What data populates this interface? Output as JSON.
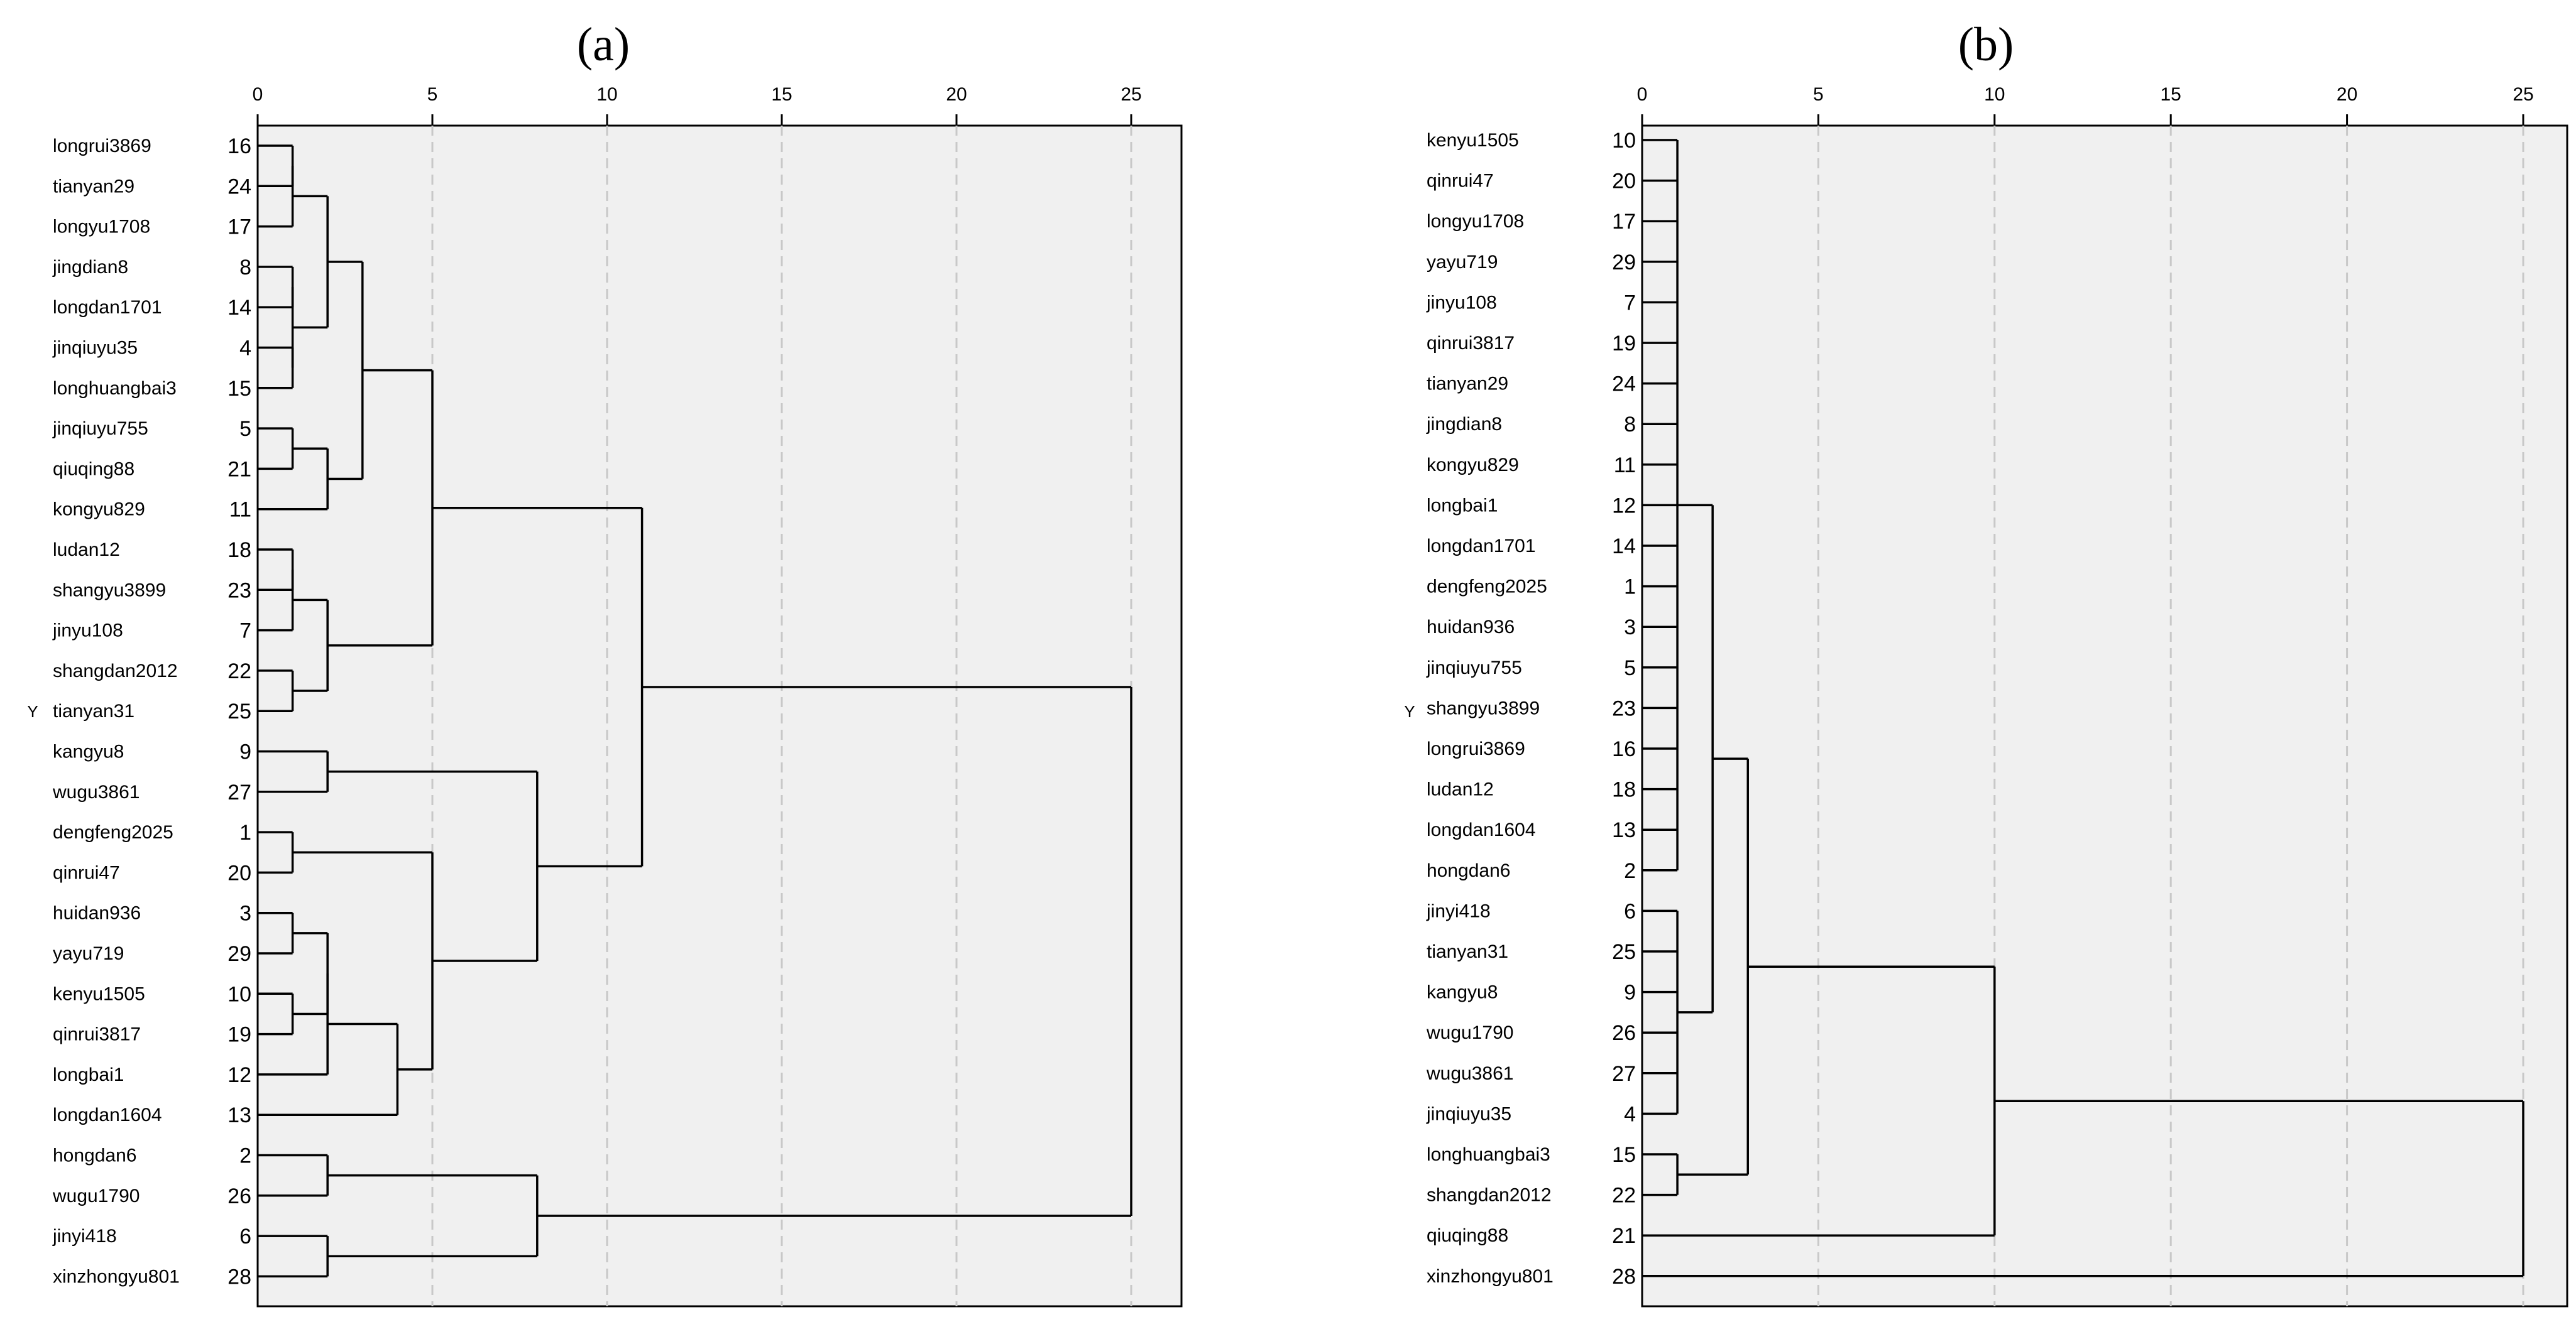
{
  "figure": {
    "panels": [
      {
        "id": "a",
        "title": "(a)",
        "y_axis_label": "Y",
        "x_ticks": [
          "0",
          "5",
          "10",
          "15",
          "20",
          "25"
        ],
        "axis_max": 25,
        "leaves": [
          {
            "name": "longrui3869",
            "id": "16"
          },
          {
            "name": "tianyan29",
            "id": "24"
          },
          {
            "name": "longyu1708",
            "id": "17"
          },
          {
            "name": "jingdian8",
            "id": "8"
          },
          {
            "name": "longdan1701",
            "id": "14"
          },
          {
            "name": "jinqiuyu35",
            "id": "4"
          },
          {
            "name": "longhuangbai3",
            "id": "15"
          },
          {
            "name": "jinqiuyu755",
            "id": "5"
          },
          {
            "name": "qiuqing88",
            "id": "21"
          },
          {
            "name": "kongyu829",
            "id": "11"
          },
          {
            "name": "ludan12",
            "id": "18"
          },
          {
            "name": "shangyu3899",
            "id": "23"
          },
          {
            "name": "jinyu108",
            "id": "7"
          },
          {
            "name": "shangdan2012",
            "id": "22"
          },
          {
            "name": "tianyan31",
            "id": "25"
          },
          {
            "name": "kangyu8",
            "id": "9"
          },
          {
            "name": "wugu3861",
            "id": "27"
          },
          {
            "name": "dengfeng2025",
            "id": "1"
          },
          {
            "name": "qinrui47",
            "id": "20"
          },
          {
            "name": "huidan936",
            "id": "3"
          },
          {
            "name": "yayu719",
            "id": "29"
          },
          {
            "name": "kenyu1505",
            "id": "10"
          },
          {
            "name": "qinrui3817",
            "id": "19"
          },
          {
            "name": "longbai1",
            "id": "12"
          },
          {
            "name": "longdan1604",
            "id": "13"
          },
          {
            "name": "hongdan6",
            "id": "2"
          },
          {
            "name": "wugu1790",
            "id": "26"
          },
          {
            "name": "jinyi418",
            "id": "6"
          },
          {
            "name": "xinzhongyu801",
            "id": "28"
          }
        ],
        "merges": [
          {
            "children": [
              [
                0,
                0
              ],
              [
                0,
                1
              ]
            ],
            "height": 1
          },
          {
            "children": [
              [
                1,
                0
              ],
              [
                0,
                2
              ]
            ],
            "height": 1
          },
          {
            "children": [
              [
                0,
                3
              ],
              [
                0,
                4
              ]
            ],
            "height": 1
          },
          {
            "children": [
              [
                0,
                5
              ],
              [
                0,
                6
              ]
            ],
            "height": 1
          },
          {
            "children": [
              [
                1,
                2
              ],
              [
                1,
                3
              ]
            ],
            "height": 1
          },
          {
            "children": [
              [
                1,
                1
              ],
              [
                1,
                4
              ]
            ],
            "height": 2
          },
          {
            "children": [
              [
                0,
                7
              ],
              [
                0,
                8
              ]
            ],
            "height": 1
          },
          {
            "children": [
              [
                1,
                6
              ],
              [
                0,
                9
              ]
            ],
            "height": 2
          },
          {
            "children": [
              [
                1,
                5
              ],
              [
                1,
                7
              ]
            ],
            "height": 3
          },
          {
            "children": [
              [
                0,
                10
              ],
              [
                0,
                11
              ]
            ],
            "height": 1
          },
          {
            "children": [
              [
                1,
                9
              ],
              [
                0,
                12
              ]
            ],
            "height": 1
          },
          {
            "children": [
              [
                0,
                13
              ],
              [
                0,
                14
              ]
            ],
            "height": 1
          },
          {
            "children": [
              [
                1,
                10
              ],
              [
                1,
                11
              ]
            ],
            "height": 2
          },
          {
            "children": [
              [
                1,
                8
              ],
              [
                1,
                12
              ]
            ],
            "height": 5
          },
          {
            "children": [
              [
                0,
                15
              ],
              [
                0,
                16
              ]
            ],
            "height": 2
          },
          {
            "children": [
              [
                0,
                17
              ],
              [
                0,
                18
              ]
            ],
            "height": 1
          },
          {
            "children": [
              [
                0,
                19
              ],
              [
                0,
                20
              ]
            ],
            "height": 1
          },
          {
            "children": [
              [
                0,
                21
              ],
              [
                0,
                22
              ]
            ],
            "height": 1
          },
          {
            "children": [
              [
                1,
                16
              ],
              [
                1,
                17
              ]
            ],
            "height": 2
          },
          {
            "children": [
              [
                1,
                18
              ],
              [
                0,
                23
              ]
            ],
            "height": 2
          },
          {
            "children": [
              [
                1,
                19
              ],
              [
                0,
                24
              ]
            ],
            "height": 4
          },
          {
            "children": [
              [
                1,
                15
              ],
              [
                1,
                20
              ]
            ],
            "height": 5
          },
          {
            "children": [
              [
                1,
                14
              ],
              [
                1,
                21
              ]
            ],
            "height": 8
          },
          {
            "children": [
              [
                1,
                13
              ],
              [
                1,
                22
              ]
            ],
            "height": 11
          },
          {
            "children": [
              [
                0,
                25
              ],
              [
                0,
                26
              ]
            ],
            "height": 2
          },
          {
            "children": [
              [
                0,
                27
              ],
              [
                0,
                28
              ]
            ],
            "height": 2
          },
          {
            "children": [
              [
                1,
                24
              ],
              [
                1,
                25
              ]
            ],
            "height": 8
          },
          {
            "children": [
              [
                1,
                23
              ],
              [
                1,
                26
              ]
            ],
            "height": 25
          }
        ]
      },
      {
        "id": "b",
        "title": "(b)",
        "y_axis_label": "Y",
        "x_ticks": [
          "0",
          "5",
          "10",
          "15",
          "20",
          "25"
        ],
        "axis_max": 25,
        "leaves": [
          {
            "name": "kenyu1505",
            "id": "10"
          },
          {
            "name": "qinrui47",
            "id": "20"
          },
          {
            "name": "longyu1708",
            "id": "17"
          },
          {
            "name": "yayu719",
            "id": "29"
          },
          {
            "name": "jinyu108",
            "id": "7"
          },
          {
            "name": "qinrui3817",
            "id": "19"
          },
          {
            "name": "tianyan29",
            "id": "24"
          },
          {
            "name": "jingdian8",
            "id": "8"
          },
          {
            "name": "kongyu829",
            "id": "11"
          },
          {
            "name": "longbai1",
            "id": "12"
          },
          {
            "name": "longdan1701",
            "id": "14"
          },
          {
            "name": "dengfeng2025",
            "id": "1"
          },
          {
            "name": "huidan936",
            "id": "3"
          },
          {
            "name": "jinqiuyu755",
            "id": "5"
          },
          {
            "name": "shangyu3899",
            "id": "23"
          },
          {
            "name": "longrui3869",
            "id": "16"
          },
          {
            "name": "ludan12",
            "id": "18"
          },
          {
            "name": "longdan1604",
            "id": "13"
          },
          {
            "name": "hongdan6",
            "id": "2"
          },
          {
            "name": "jinyi418",
            "id": "6"
          },
          {
            "name": "tianyan31",
            "id": "25"
          },
          {
            "name": "kangyu8",
            "id": "9"
          },
          {
            "name": "wugu1790",
            "id": "26"
          },
          {
            "name": "wugu3861",
            "id": "27"
          },
          {
            "name": "jinqiuyu35",
            "id": "4"
          },
          {
            "name": "longhuangbai3",
            "id": "15"
          },
          {
            "name": "shangdan2012",
            "id": "22"
          },
          {
            "name": "qiuqing88",
            "id": "21"
          },
          {
            "name": "xinzhongyu801",
            "id": "28"
          }
        ],
        "merges": [
          {
            "children": [
              [
                0,
                0
              ],
              [
                0,
                1
              ],
              [
                0,
                2
              ],
              [
                0,
                3
              ],
              [
                0,
                4
              ],
              [
                0,
                5
              ],
              [
                0,
                6
              ],
              [
                0,
                7
              ],
              [
                0,
                8
              ],
              [
                0,
                9
              ],
              [
                0,
                10
              ],
              [
                0,
                11
              ],
              [
                0,
                12
              ],
              [
                0,
                13
              ],
              [
                0,
                14
              ],
              [
                0,
                15
              ],
              [
                0,
                16
              ],
              [
                0,
                17
              ],
              [
                0,
                18
              ]
            ],
            "height": 1
          },
          {
            "children": [
              [
                0,
                19
              ],
              [
                0,
                20
              ],
              [
                0,
                21
              ],
              [
                0,
                22
              ],
              [
                0,
                23
              ],
              [
                0,
                24
              ]
            ],
            "height": 1
          },
          {
            "children": [
              [
                1,
                0
              ],
              [
                1,
                1
              ]
            ],
            "height": 2
          },
          {
            "children": [
              [
                0,
                25
              ],
              [
                0,
                26
              ]
            ],
            "height": 1
          },
          {
            "children": [
              [
                1,
                2
              ],
              [
                1,
                3
              ]
            ],
            "height": 3
          },
          {
            "children": [
              [
                1,
                4
              ],
              [
                0,
                27
              ]
            ],
            "height": 10
          },
          {
            "children": [
              [
                1,
                5
              ],
              [
                0,
                28
              ]
            ],
            "height": 25
          }
        ]
      }
    ]
  }
}
